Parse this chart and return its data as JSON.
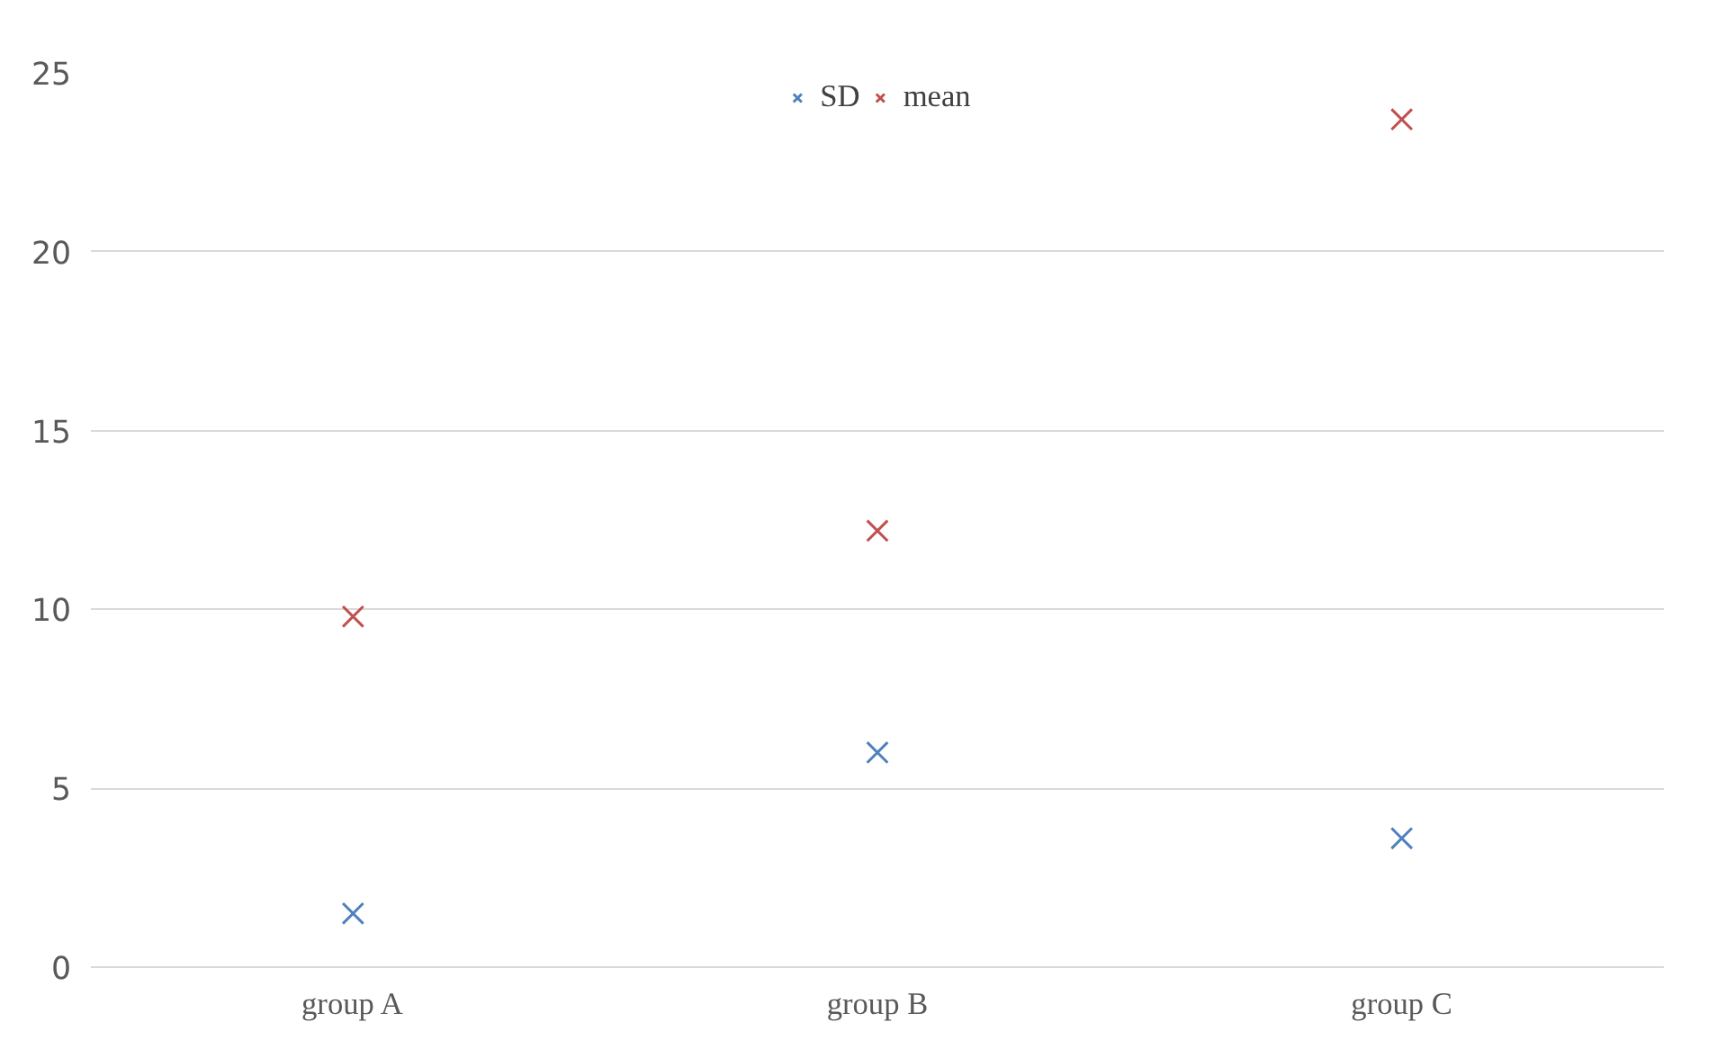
{
  "chart_data": {
    "type": "scatter",
    "categories": [
      "group A",
      "group B",
      "group C"
    ],
    "series": [
      {
        "name": "SD",
        "color": "#4f81bd",
        "values": [
          1.5,
          6.0,
          3.6
        ]
      },
      {
        "name": "mean",
        "color": "#c0504d",
        "values": [
          9.8,
          12.2,
          23.7
        ]
      }
    ],
    "ylim": [
      0,
      25
    ],
    "yticks": [
      0,
      5,
      10,
      15,
      20,
      25
    ],
    "grid": "y",
    "legend": "top",
    "marker": "cross"
  }
}
